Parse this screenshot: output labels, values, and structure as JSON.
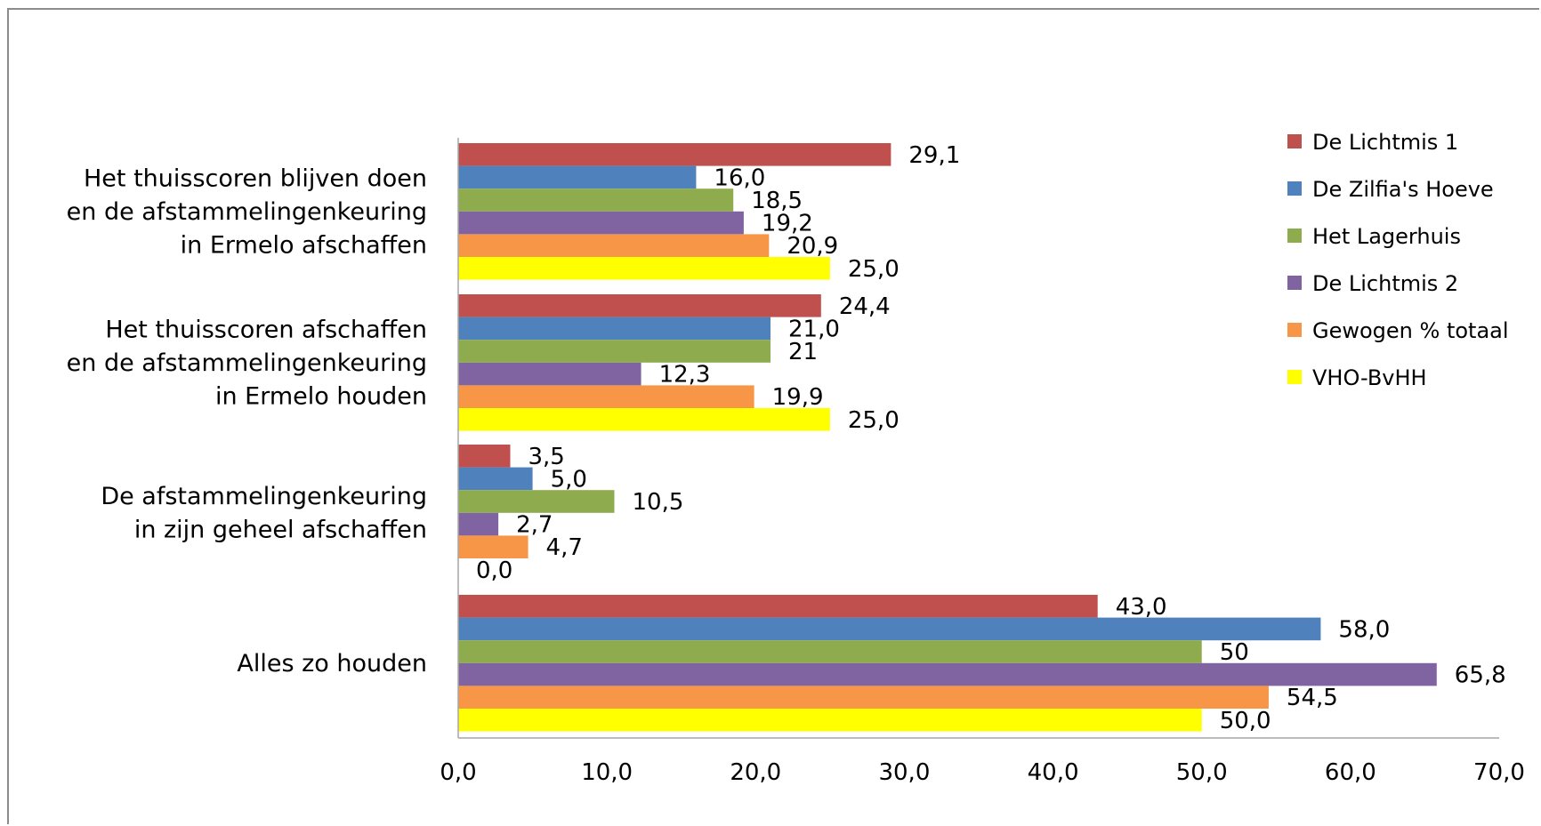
{
  "chart_data": {
    "type": "bar",
    "orientation": "horizontal",
    "categories": [
      [
        "Het thuisscoren blijven doen",
        "en de afstammelingenkeuring",
        "in Ermelo afschaffen"
      ],
      [
        "Het thuisscoren afschaffen",
        "en de afstammelingenkeuring",
        "in Ermelo houden"
      ],
      [
        "De afstammelingenkeuring",
        "in zijn geheel afschaffen"
      ],
      [
        "Alles zo houden"
      ]
    ],
    "series": [
      {
        "name": "De Lichtmis 1",
        "color": "#c0504d",
        "values": [
          29.1,
          24.4,
          3.5,
          43.0
        ],
        "labels": [
          "29,1",
          "24,4",
          "3,5",
          "43,0"
        ]
      },
      {
        "name": "De Zilfia's Hoeve",
        "color": "#4f81bd",
        "values": [
          16.0,
          21.0,
          5.0,
          58.0
        ],
        "labels": [
          "16,0",
          "21,0",
          "5,0",
          "58,0"
        ]
      },
      {
        "name": "Het Lagerhuis",
        "color": "#8eac4d",
        "values": [
          18.5,
          21,
          10.5,
          50
        ],
        "labels": [
          "18,5",
          "21",
          "10,5",
          "50"
        ]
      },
      {
        "name": "De Lichtmis 2",
        "color": "#8064a2",
        "values": [
          19.2,
          12.3,
          2.7,
          65.8
        ],
        "labels": [
          "19,2",
          "12,3",
          "2,7",
          "65,8"
        ]
      },
      {
        "name": "Gewogen % totaal",
        "color": "#f79646",
        "values": [
          20.9,
          19.9,
          4.7,
          54.5
        ],
        "labels": [
          "20,9",
          "19,9",
          "4,7",
          "54,5"
        ]
      },
      {
        "name": "VHO-BvHH",
        "color": "#ffff00",
        "values": [
          25.0,
          25.0,
          0.0,
          50.0
        ],
        "labels": [
          "25,0",
          "25,0",
          "0,0",
          "50,0"
        ]
      }
    ],
    "xlim": [
      0,
      70
    ],
    "xticks": [
      "0,0",
      "10,0",
      "20,0",
      "30,0",
      "40,0",
      "50,0",
      "60,0",
      "70,0"
    ],
    "grid": false,
    "legend_position": "right",
    "title": "",
    "xlabel": "",
    "ylabel": ""
  }
}
